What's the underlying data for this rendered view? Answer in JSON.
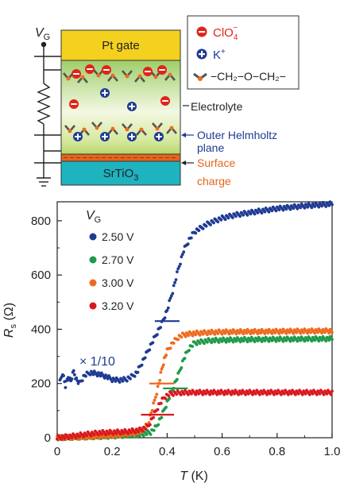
{
  "schematic": {
    "vg_symbol": "V",
    "vg_subscript": "G",
    "gate_label": "Pt gate",
    "substrate_label": "SrTiO",
    "substrate_subscript": "3",
    "electrolyte_label": "Electrolyte",
    "helmholtz_label_1": "Outer Helmholtz",
    "helmholtz_label_2": "plane",
    "surface_label_1": "Surface",
    "surface_label_2": "charge",
    "legend": {
      "anion_label": "ClO",
      "anion_subscript": "4",
      "anion_superscript": "−",
      "cation_label": "K",
      "cation_superscript": "+",
      "chain_label": "−CH₂−O−CH₂−"
    },
    "colors": {
      "gate": "#f5d11f",
      "anion": "#e2231a",
      "cation": "#1f3a93",
      "chain": "#555555",
      "oxygen": "#ef6a1e",
      "substrate": "#1fb3c0",
      "surface_charge": "#e4651e",
      "helmholtz_text": "#1f3a93",
      "surface_text": "#e4651e"
    }
  },
  "chart_data": {
    "type": "scatter",
    "xlabel": "T (K)",
    "ylabel": "R_s (Ω)",
    "xlim": [
      0,
      1.0
    ],
    "ylim": [
      0,
      870
    ],
    "x_ticks": [
      0,
      0.2,
      0.4,
      0.6,
      0.8,
      1.0
    ],
    "x_tick_labels": [
      "0",
      "0.2",
      "0.4",
      "0.6",
      "0.8",
      "1.0"
    ],
    "y_ticks": [
      0,
      200,
      400,
      600,
      800
    ],
    "y_tick_labels": [
      "0",
      "200",
      "400",
      "600",
      "800"
    ],
    "legend_title": "V",
    "legend_title_subscript": "G",
    "legend_position": "top-left",
    "annotation": "× 1/10",
    "series": [
      {
        "name": "2.50 V",
        "color": "#1f3a93",
        "x": [
          0.01,
          0.02,
          0.03,
          0.04,
          0.05,
          0.06,
          0.07,
          0.08,
          0.1,
          0.12,
          0.15,
          0.18,
          0.2,
          0.22,
          0.25,
          0.27,
          0.29,
          0.3,
          0.32,
          0.34,
          0.36,
          0.38,
          0.4,
          0.42,
          0.44,
          0.46,
          0.48,
          0.5,
          0.55,
          0.6,
          0.65,
          0.7,
          0.8,
          0.9,
          1.0
        ],
        "y": [
          205,
          240,
          190,
          225,
          210,
          245,
          215,
          200,
          230,
          240,
          235,
          225,
          215,
          212,
          215,
          225,
          240,
          260,
          300,
          340,
          380,
          420,
          470,
          540,
          620,
          690,
          730,
          760,
          790,
          810,
          822,
          830,
          845,
          855,
          862
        ]
      },
      {
        "name": "2.70 V",
        "color": "#1e9a4a",
        "x": [
          0.0,
          0.1,
          0.2,
          0.3,
          0.34,
          0.36,
          0.38,
          0.4,
          0.42,
          0.44,
          0.46,
          0.48,
          0.5,
          0.55,
          0.6,
          0.7,
          0.8,
          0.9,
          1.0
        ],
        "y": [
          0,
          3,
          6,
          12,
          20,
          40,
          80,
          130,
          180,
          230,
          290,
          330,
          350,
          358,
          360,
          362,
          363,
          364,
          365
        ]
      },
      {
        "name": "3.00 V",
        "color": "#ef6a1e",
        "x": [
          0.0,
          0.1,
          0.2,
          0.3,
          0.33,
          0.35,
          0.37,
          0.38,
          0.39,
          0.4,
          0.42,
          0.44,
          0.46,
          0.5,
          0.55,
          0.6,
          0.7,
          0.8,
          0.9,
          1.0
        ],
        "y": [
          0,
          3,
          8,
          20,
          50,
          120,
          200,
          250,
          290,
          320,
          350,
          370,
          380,
          385,
          388,
          390,
          391,
          392,
          393,
          394
        ]
      },
      {
        "name": "3.20 V",
        "color": "#d9181e",
        "x": [
          0.0,
          0.05,
          0.1,
          0.15,
          0.2,
          0.25,
          0.3,
          0.33,
          0.35,
          0.37,
          0.39,
          0.41,
          0.43,
          0.45,
          0.5,
          0.6,
          0.7,
          0.8,
          0.9,
          1.0
        ],
        "y": [
          0,
          5,
          12,
          18,
          20,
          22,
          28,
          40,
          80,
          120,
          150,
          162,
          165,
          166,
          167,
          167,
          167,
          167,
          167,
          167
        ]
      }
    ],
    "markers": [
      {
        "series": "2.50 V",
        "x": 0.4,
        "y": 430,
        "half_width": 0.045
      },
      {
        "series": "3.00 V",
        "x": 0.38,
        "y": 200,
        "half_width": 0.045
      },
      {
        "series": "2.70 V",
        "x": 0.43,
        "y": 182,
        "half_width": 0.045
      },
      {
        "series": "3.20 V",
        "x": 0.365,
        "y": 85,
        "half_width": 0.06
      }
    ]
  }
}
